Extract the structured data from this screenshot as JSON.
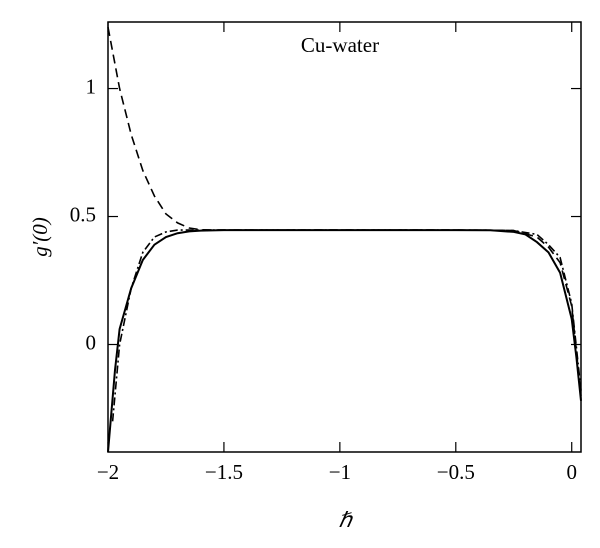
{
  "chart_data": {
    "type": "line",
    "annotation": "Cu-water",
    "xlabel": "ℏ",
    "ylabel": "g′(0)",
    "xlim": [
      -2,
      0.04
    ],
    "ylim": [
      -0.42,
      1.26
    ],
    "xticks": [
      {
        "value": -2,
        "label": "−2"
      },
      {
        "value": -1.5,
        "label": "−1.5"
      },
      {
        "value": -1,
        "label": "−1"
      },
      {
        "value": -0.5,
        "label": "−0.5"
      },
      0
    ],
    "yticks": [
      0,
      0.5,
      1
    ],
    "series": [
      {
        "color": "#000000",
        "style": "solid",
        "x": [
          -2,
          -1.97,
          -1.95,
          -1.9,
          -1.85,
          -1.8,
          -1.75,
          -1.7,
          -1.65,
          -1.6,
          -1.5,
          -1.0,
          -0.5,
          -0.35,
          -0.25,
          -0.2,
          -0.15,
          -0.1,
          -0.05,
          0,
          0.02,
          0.04
        ],
        "values": [
          -0.42,
          -0.1,
          0.06,
          0.22,
          0.33,
          0.39,
          0.42,
          0.435,
          0.442,
          0.445,
          0.447,
          0.447,
          0.447,
          0.446,
          0.44,
          0.43,
          0.4,
          0.36,
          0.28,
          0.1,
          -0.05,
          -0.22
        ]
      },
      {
        "color": "#000000",
        "style": "dashed",
        "x": [
          -2,
          -1.95,
          -1.9,
          -1.85,
          -1.8,
          -1.75,
          -1.7,
          -1.65,
          -1.6,
          -1.5,
          -1.0,
          -0.5,
          -0.3,
          -0.25,
          -0.15,
          -0.1,
          -0.05,
          0,
          0.04
        ],
        "values": [
          1.24,
          1.0,
          0.82,
          0.68,
          0.58,
          0.51,
          0.475,
          0.455,
          0.448,
          0.447,
          0.447,
          0.447,
          0.446,
          0.445,
          0.42,
          0.38,
          0.32,
          0.15,
          -0.2
        ]
      },
      {
        "color": "#000000",
        "style": "dashdot",
        "x": [
          -1.98,
          -1.95,
          -1.9,
          -1.85,
          -1.8,
          -1.75,
          -1.7,
          -1.5,
          -1.0,
          -0.5,
          -0.3,
          -0.25,
          -0.15,
          -0.1,
          -0.05,
          0,
          0.04
        ],
        "values": [
          -0.3,
          0.0,
          0.22,
          0.36,
          0.42,
          0.44,
          0.447,
          0.447,
          0.447,
          0.447,
          0.446,
          0.445,
          0.43,
          0.39,
          0.34,
          0.16,
          -0.18
        ]
      }
    ]
  }
}
